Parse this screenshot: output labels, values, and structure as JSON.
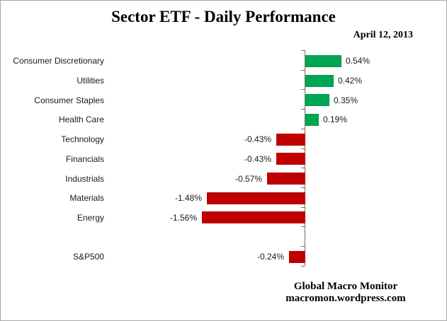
{
  "title": "Sector ETF - Daily Performance",
  "date": "April 12, 2013",
  "footer": {
    "line1": "Global Macro Monitor",
    "line2": "macromon.wordpress.com"
  },
  "chart_data": {
    "type": "bar",
    "orientation": "horizontal",
    "title": "Sector ETF - Daily Performance",
    "subtitle": "April 12, 2013",
    "xlabel": "",
    "ylabel": "",
    "unit": "%",
    "categories": [
      "Consumer Discretionary",
      "Utilities",
      "Consumer Staples",
      "Health Care",
      "Technology",
      "Financials",
      "Industrials",
      "Materials",
      "Energy",
      "",
      "S&P500"
    ],
    "values": [
      0.54,
      0.42,
      0.35,
      0.19,
      -0.43,
      -0.43,
      -0.57,
      -1.48,
      -1.56,
      null,
      -0.24
    ],
    "labels": [
      "0.54%",
      "0.42%",
      "0.35%",
      "0.19%",
      "-0.43%",
      "-0.43%",
      "-0.57%",
      "-1.48%",
      "-1.56%",
      "",
      "-0.24%"
    ],
    "xlim": [
      -1.75,
      1.1
    ],
    "grid": false,
    "legend_position": "none",
    "colors": {
      "positive": "#00a651",
      "negative": "#c00000",
      "axis": "#6e6e6e",
      "label_text": "#1a1a1a"
    }
  }
}
